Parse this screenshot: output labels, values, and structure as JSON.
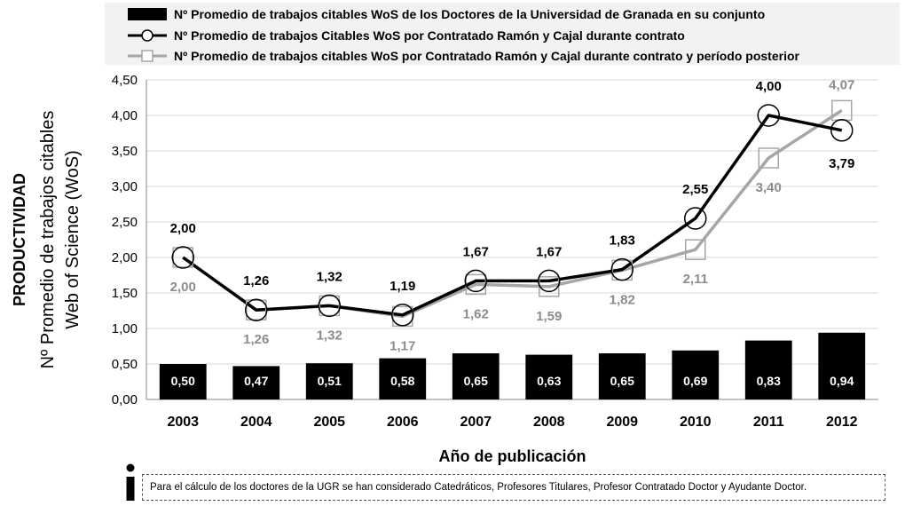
{
  "chart_data": {
    "type": "bar+line",
    "categories": [
      "2003",
      "2004",
      "2005",
      "2006",
      "2007",
      "2008",
      "2009",
      "2010",
      "2011",
      "2012"
    ],
    "series": [
      {
        "name": "Nº Promedio de trabajos citables WoS de los Doctores de  la Universidad de Granada en su conjunto",
        "kind": "bar",
        "color": "#000000",
        "values": [
          0.5,
          0.47,
          0.51,
          0.58,
          0.65,
          0.63,
          0.65,
          0.69,
          0.83,
          0.94
        ],
        "labels": [
          "0,50",
          "0,47",
          "0,51",
          "0,58",
          "0,65",
          "0,63",
          "0,65",
          "0,69",
          "0,83",
          "0,94"
        ]
      },
      {
        "name": "Nº Promedio de trabajos Citables WoS por Contratado Ramón y Cajal durante contrato",
        "kind": "line",
        "marker": "circle",
        "color": "#000000",
        "values": [
          2.0,
          1.26,
          1.32,
          1.19,
          1.67,
          1.67,
          1.83,
          2.55,
          4.0,
          3.79
        ],
        "labels": [
          "2,00",
          "1,26",
          "1,32",
          "1,19",
          "1,67",
          "1,67",
          "1,83",
          "2,55",
          "4,00",
          "3,79"
        ]
      },
      {
        "name": "Nº Promedio de trabajos citables WoS por Contratado Ramón y Cajal durante contrato y período posterior",
        "kind": "line",
        "marker": "square",
        "color": "#a6a6a6",
        "values": [
          2.0,
          1.26,
          1.32,
          1.17,
          1.62,
          1.59,
          1.82,
          2.11,
          3.4,
          4.07
        ],
        "labels": [
          "2,00",
          "1,26",
          "1,32",
          "1,17",
          "1,62",
          "1,59",
          "1,82",
          "2,11",
          "3,40",
          "4,07"
        ]
      }
    ],
    "yticks": [
      "0,00",
      "0,50",
      "1,00",
      "1,50",
      "2,00",
      "2,50",
      "3,00",
      "3,50",
      "4,00",
      "4,50"
    ],
    "ylim": [
      0,
      4.5
    ],
    "ylabel": [
      "PRODUCTIVIDAD",
      "Nº Promedio de trabajos citables",
      "Web of Science (WoS)"
    ],
    "xlabel": "Año de publicación",
    "grid": true,
    "legend_position": "top"
  },
  "note": "Para el cálculo de los doctores de la UGR se han considerado Catedráticos, Profesores Titulares, Profesor Contratado Doctor y Ayudante Doctor."
}
